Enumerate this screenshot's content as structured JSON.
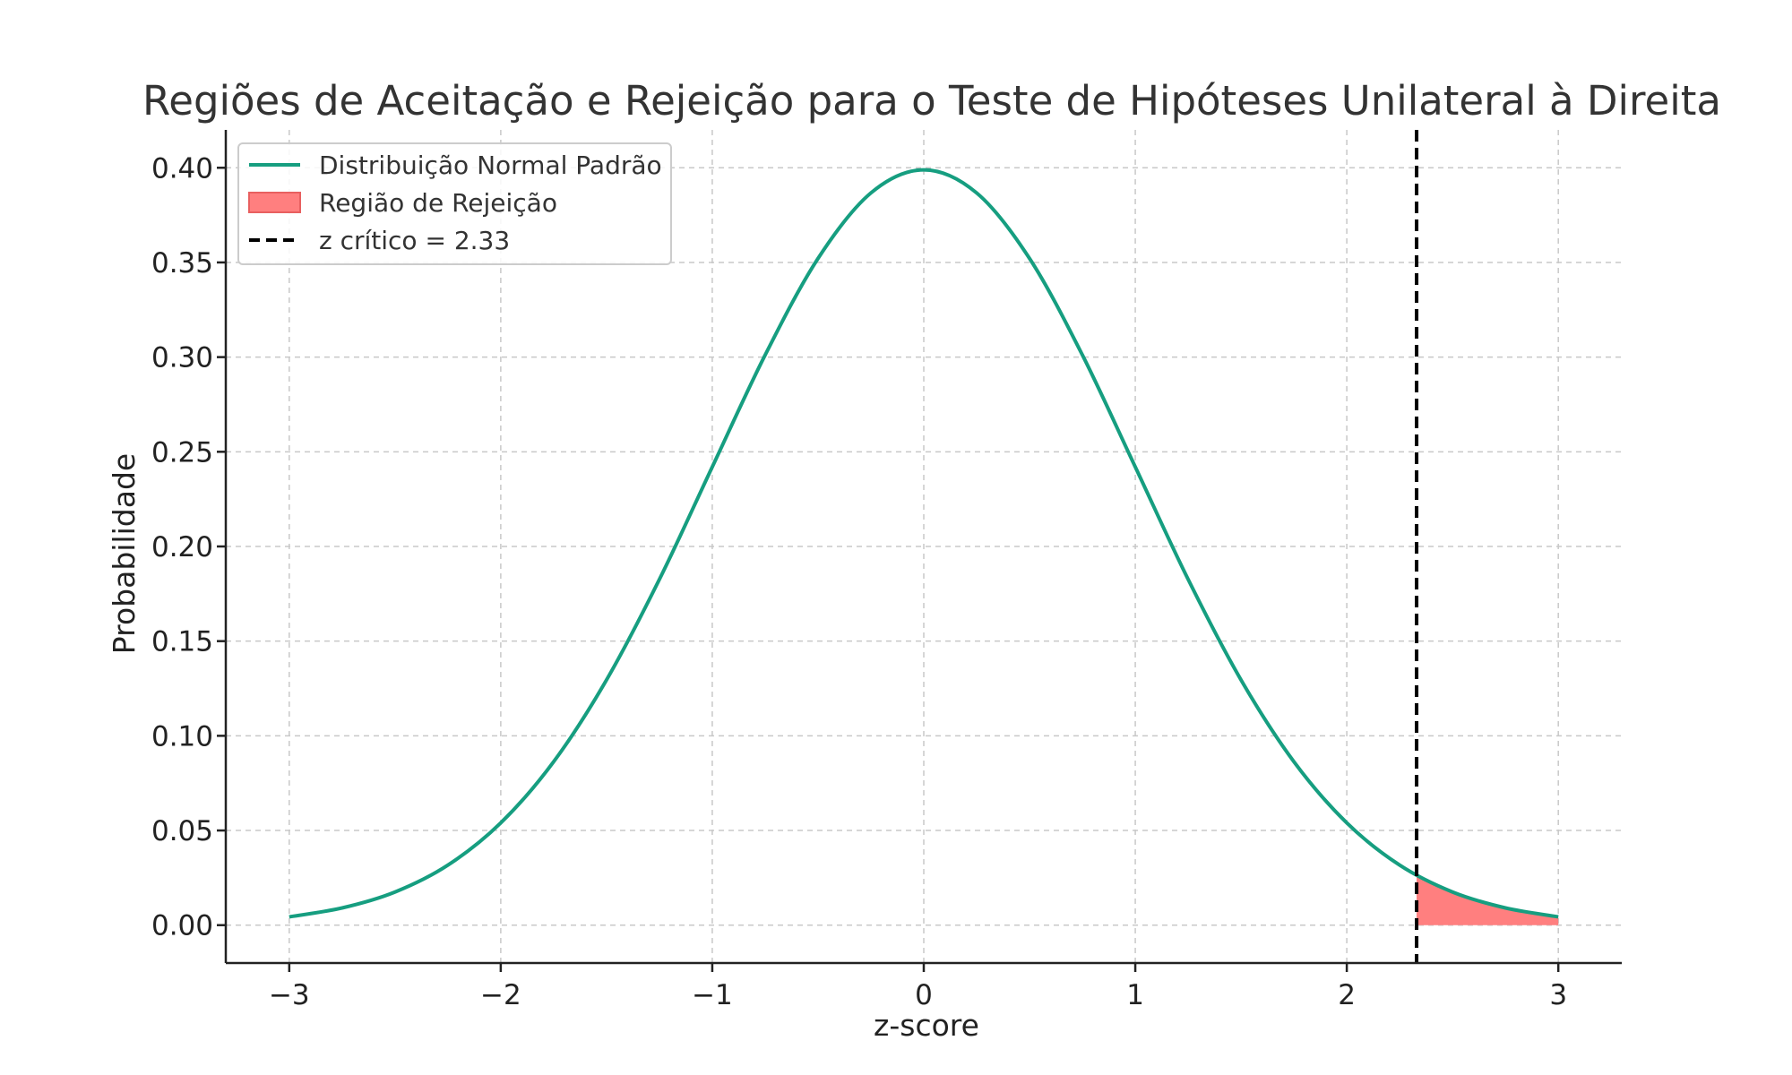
{
  "chart_data": {
    "type": "line",
    "title": "Regiões de Aceitação e Rejeição para o Teste de Hipóteses Unilateral à Direita",
    "xlabel": "z-score",
    "ylabel": "Probabilidade",
    "xlim": [
      -3.3,
      3.3
    ],
    "ylim": [
      -0.02,
      0.42
    ],
    "x_ticks": [
      -3,
      -2,
      -1,
      0,
      1,
      2,
      3
    ],
    "x_tick_labels": [
      "−3",
      "−2",
      "−1",
      "0",
      "1",
      "2",
      "3"
    ],
    "y_ticks": [
      0.0,
      0.05,
      0.1,
      0.15,
      0.2,
      0.25,
      0.3,
      0.35,
      0.4
    ],
    "y_tick_labels": [
      "0.00",
      "0.05",
      "0.10",
      "0.15",
      "0.20",
      "0.25",
      "0.30",
      "0.35",
      "0.40"
    ],
    "grid": true,
    "legend_position": "top-left",
    "series": [
      {
        "name": "Distribuição Normal Padrão",
        "kind": "line",
        "color": "#169e80",
        "x": [
          -3.0,
          -2.75,
          -2.5,
          -2.25,
          -2.0,
          -1.75,
          -1.5,
          -1.25,
          -1.0,
          -0.75,
          -0.5,
          -0.25,
          0.0,
          0.25,
          0.5,
          0.75,
          1.0,
          1.25,
          1.5,
          1.75,
          2.0,
          2.25,
          2.5,
          2.75,
          3.0
        ],
        "y": [
          0.0044,
          0.0091,
          0.0175,
          0.0317,
          0.054,
          0.0863,
          0.1295,
          0.1826,
          0.242,
          0.3011,
          0.3521,
          0.3867,
          0.3989,
          0.3867,
          0.3521,
          0.3011,
          0.242,
          0.1826,
          0.1295,
          0.0863,
          0.054,
          0.0317,
          0.0175,
          0.0091,
          0.0044
        ]
      },
      {
        "name": "Região de Rejeição",
        "kind": "area",
        "color": "#ff7f7f",
        "x": [
          2.33,
          2.5,
          2.75,
          3.0
        ],
        "y": [
          0.0264,
          0.0175,
          0.0091,
          0.0044
        ]
      },
      {
        "name": "z crítico = 2.33",
        "kind": "vline",
        "color": "#000000",
        "x": 2.33
      }
    ]
  }
}
